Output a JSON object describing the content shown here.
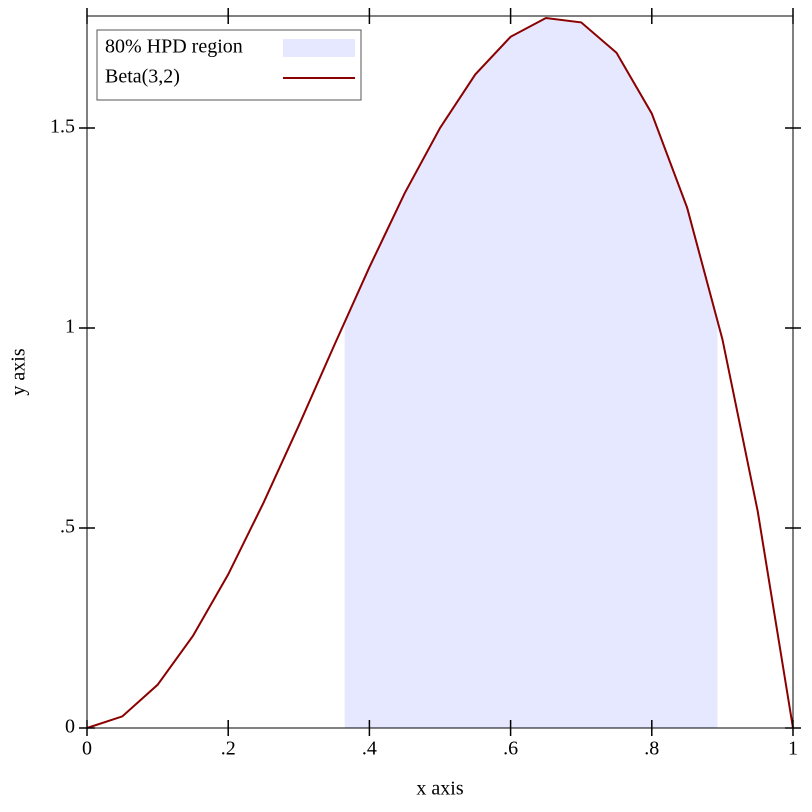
{
  "chart_data": {
    "type": "line",
    "xlabel": "x axis",
    "ylabel": "y axis",
    "xlim": [
      0,
      1
    ],
    "ylim": [
      0,
      1.78
    ],
    "xticks": [
      0,
      {
        "value": 0.2,
        "label": ".2"
      },
      {
        "value": 0.4,
        "label": ".4"
      },
      {
        "value": 0.6,
        "label": ".6"
      },
      {
        "value": 0.8,
        "label": ".8"
      },
      1
    ],
    "yticks": [
      0,
      {
        "value": 0.5,
        "label": ".5"
      },
      1,
      1.5
    ],
    "legend": "top-left",
    "series": [
      {
        "name": "80% HPD region",
        "type": "area",
        "color": "#e5e8fe",
        "x": [
          0.365,
          0.4,
          0.45,
          0.5,
          0.55,
          0.6,
          0.65,
          0.7,
          0.75,
          0.8,
          0.85,
          0.893
        ],
        "values": [
          1.015,
          1.152,
          1.337,
          1.5,
          1.634,
          1.728,
          1.775,
          1.764,
          1.688,
          1.536,
          1.301,
          1.024
        ]
      },
      {
        "name": "Beta(3,2)",
        "type": "line",
        "color": "#8b0000",
        "x": [
          0,
          0.05,
          0.1,
          0.15,
          0.2,
          0.25,
          0.3,
          0.35,
          0.4,
          0.45,
          0.5,
          0.55,
          0.6,
          0.65,
          0.7,
          0.75,
          0.8,
          0.85,
          0.9,
          0.95,
          1
        ],
        "values": [
          0,
          0.029,
          0.108,
          0.23,
          0.384,
          0.563,
          0.756,
          0.956,
          1.152,
          1.337,
          1.5,
          1.634,
          1.728,
          1.775,
          1.764,
          1.688,
          1.536,
          1.301,
          0.972,
          0.542,
          0
        ]
      }
    ]
  }
}
